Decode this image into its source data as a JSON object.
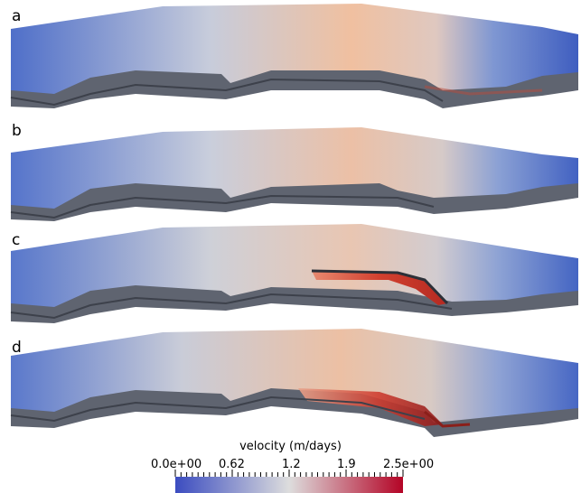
{
  "panels": [
    {
      "label": "a"
    },
    {
      "label": "b"
    },
    {
      "label": "c"
    },
    {
      "label": "d"
    }
  ],
  "colorbar": {
    "title": "velocity (m/days)",
    "ticks": [
      "0.0e+00",
      "0.62",
      "1.2",
      "1.9",
      "2.5e+00"
    ],
    "colors": [
      "#3b4cc0",
      "#dddddd",
      "#b40426"
    ]
  }
}
